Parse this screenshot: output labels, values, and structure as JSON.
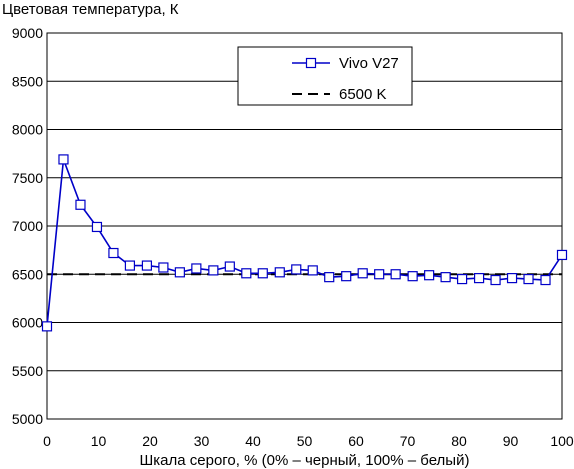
{
  "chart_data": {
    "type": "line",
    "title": "",
    "ylabel": "Цветовая температура, К",
    "xlabel": "Шкала серого, % (0% – черный, 100% – белый)",
    "xlim": [
      0,
      100
    ],
    "ylim": [
      5000,
      9000
    ],
    "xticks": [
      0,
      10,
      20,
      30,
      40,
      50,
      60,
      70,
      80,
      90,
      100
    ],
    "yticks": [
      5000,
      5500,
      6000,
      6500,
      7000,
      7500,
      8000,
      8500,
      9000
    ],
    "grid": "horizontal",
    "legend_position": "top-right",
    "series": [
      {
        "name": "Vivo V27",
        "color": "#0000c8",
        "marker": "square",
        "line": "solid",
        "x": [
          0,
          3.2,
          6.5,
          9.7,
          12.9,
          16.1,
          19.4,
          22.6,
          25.8,
          29,
          32.3,
          35.5,
          38.7,
          41.9,
          45.2,
          48.4,
          51.6,
          54.8,
          58.1,
          61.3,
          64.5,
          67.7,
          71,
          74.2,
          77.4,
          80.6,
          83.9,
          87.1,
          90.3,
          93.5,
          96.8,
          100
        ],
        "y": [
          5960,
          7690,
          7220,
          6990,
          6720,
          6590,
          6590,
          6570,
          6520,
          6560,
          6540,
          6580,
          6510,
          6510,
          6520,
          6550,
          6540,
          6470,
          6480,
          6510,
          6500,
          6500,
          6480,
          6490,
          6470,
          6450,
          6460,
          6440,
          6460,
          6450,
          6440,
          6700
        ]
      },
      {
        "name": "6500 K",
        "color": "#000000",
        "marker": "none",
        "line": "dashed",
        "x": [
          0,
          100
        ],
        "y": [
          6500,
          6500
        ]
      }
    ]
  }
}
